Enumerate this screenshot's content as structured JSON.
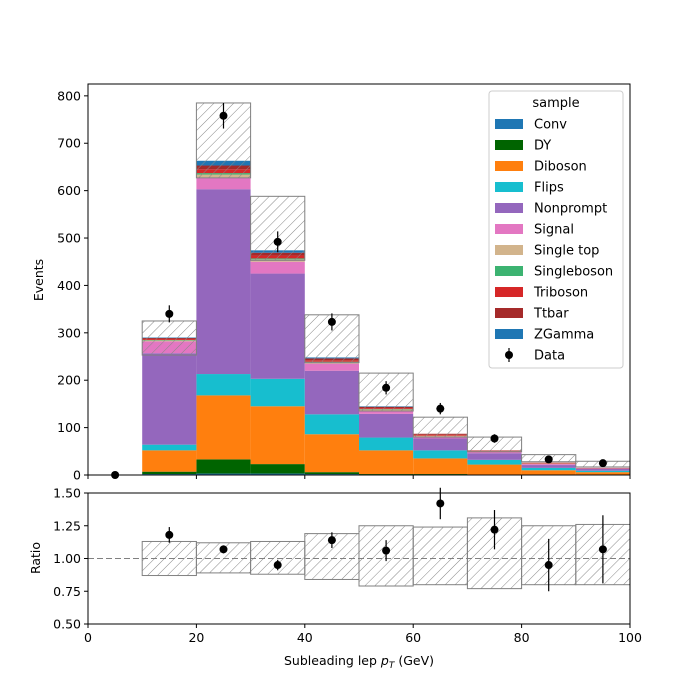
{
  "chart_data": [
    {
      "type": "bar",
      "stacked": true,
      "xlabel": "",
      "ylabel": "Events",
      "xlim": [
        0,
        100
      ],
      "ylim": [
        0,
        825
      ],
      "yticks": [
        0,
        100,
        200,
        300,
        400,
        500,
        600,
        700,
        800
      ],
      "bin_edges": [
        0,
        10,
        20,
        30,
        40,
        50,
        60,
        70,
        80,
        90,
        100
      ],
      "grid": false,
      "legend_title": "sample",
      "legend_position": "top-right",
      "series": [
        {
          "name": "Conv",
          "color": "#1f77b4",
          "values": [
            0,
            2,
            3,
            3,
            2,
            1,
            1,
            0,
            0,
            0
          ]
        },
        {
          "name": "DY",
          "color": "#006400",
          "values": [
            0,
            5,
            30,
            20,
            4,
            1,
            1,
            0,
            0,
            0
          ]
        },
        {
          "name": "Diboson",
          "color": "#ff7f0e",
          "values": [
            0,
            45,
            135,
            122,
            80,
            50,
            33,
            22,
            10,
            6
          ]
        },
        {
          "name": "Flips",
          "color": "#17becf",
          "values": [
            0,
            12,
            45,
            58,
            42,
            27,
            17,
            10,
            5,
            3
          ]
        },
        {
          "name": "Nonprompt",
          "color": "#9467bd",
          "values": [
            0,
            193,
            390,
            222,
            92,
            50,
            25,
            14,
            6,
            4
          ]
        },
        {
          "name": "Signal",
          "color": "#e377c2",
          "values": [
            0,
            25,
            25,
            25,
            15,
            7,
            4,
            3,
            2,
            1
          ]
        },
        {
          "name": "Single top",
          "color": "#d2b48c",
          "values": [
            0,
            2,
            6,
            5,
            3,
            2,
            2,
            1,
            1,
            0
          ]
        },
        {
          "name": "Singleboson",
          "color": "#3cb371",
          "values": [
            0,
            1,
            3,
            2,
            1,
            1,
            0,
            0,
            0,
            0
          ]
        },
        {
          "name": "Triboson",
          "color": "#d62728",
          "values": [
            0,
            2,
            8,
            6,
            3,
            2,
            2,
            1,
            1,
            0
          ]
        },
        {
          "name": "Ttbar",
          "color": "#a52a2a",
          "values": [
            0,
            2,
            8,
            6,
            4,
            3,
            2,
            1,
            1,
            1
          ]
        },
        {
          "name": "ZGamma",
          "color": "#1f77b4",
          "values": [
            0,
            1,
            10,
            5,
            2,
            1,
            0,
            0,
            0,
            0
          ]
        }
      ],
      "uncertainty": {
        "hatch": "////",
        "total": [
          0,
          290,
          703,
          515,
          283,
          172,
          97,
          64,
          35,
          23
        ],
        "down": [
          0,
          253,
          627,
          453,
          237,
          135,
          80,
          49,
          28,
          17
        ],
        "up": [
          0,
          325,
          785,
          588,
          338,
          215,
          122,
          80,
          43,
          29
        ]
      },
      "data": {
        "name": "Data",
        "x": [
          5,
          15,
          25,
          35,
          45,
          55,
          65,
          75,
          85,
          95
        ],
        "y": [
          0,
          340,
          758,
          492,
          323,
          184,
          140,
          77,
          33,
          25
        ],
        "yerr": [
          0,
          18,
          27,
          22,
          18,
          14,
          12,
          9,
          6,
          5
        ]
      }
    },
    {
      "type": "scatter",
      "xlabel": "Subleading lep $p_T$ (GeV)",
      "ylabel": "Ratio",
      "xlim": [
        0,
        100
      ],
      "ylim": [
        0.5,
        1.5
      ],
      "xticks": [
        0,
        20,
        40,
        60,
        80,
        100
      ],
      "yticks": [
        0.5,
        0.75,
        1.0,
        1.25,
        1.5
      ],
      "reference_line": 1.0,
      "bin_edges": [
        0,
        10,
        20,
        30,
        40,
        50,
        60,
        70,
        80,
        90,
        100
      ],
      "band_low": [
        null,
        0.87,
        0.89,
        0.88,
        0.84,
        0.79,
        0.8,
        0.77,
        0.8,
        0.8
      ],
      "band_high": [
        null,
        1.13,
        1.12,
        1.13,
        1.19,
        1.25,
        1.24,
        1.31,
        1.25,
        1.26
      ],
      "points": {
        "x": [
          15,
          25,
          35,
          45,
          55,
          65,
          75,
          85,
          95
        ],
        "y": [
          1.18,
          1.07,
          0.95,
          1.14,
          1.06,
          1.42,
          1.22,
          0.95,
          1.07
        ],
        "yerr": [
          0.06,
          0.03,
          0.04,
          0.06,
          0.08,
          0.12,
          0.15,
          0.2,
          0.26
        ]
      }
    }
  ],
  "text": {
    "main_ytick_labels": [
      "0",
      "100",
      "200",
      "300",
      "400",
      "500",
      "600",
      "700",
      "800"
    ],
    "ratio_ytick_labels": [
      "0.50",
      "0.75",
      "1.00",
      "1.25",
      "1.50"
    ],
    "xtick_labels": [
      "0",
      "20",
      "40",
      "60",
      "80",
      "100"
    ]
  }
}
